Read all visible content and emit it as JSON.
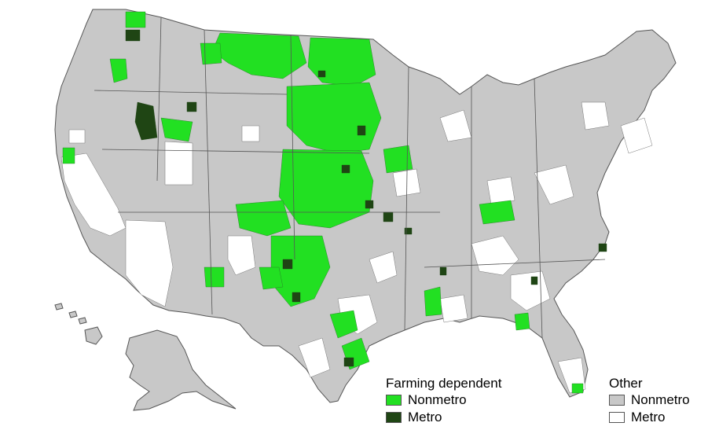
{
  "legend": {
    "farming": {
      "title": "Farming dependent",
      "items": [
        {
          "label": "Nonmetro",
          "color": "#22e022"
        },
        {
          "label": "Metro",
          "color": "#1f4514"
        }
      ]
    },
    "other": {
      "title": "Other",
      "items": [
        {
          "label": "Nonmetro",
          "color": "#c8c8c8"
        },
        {
          "label": "Metro",
          "color": "#ffffff"
        }
      ]
    }
  }
}
